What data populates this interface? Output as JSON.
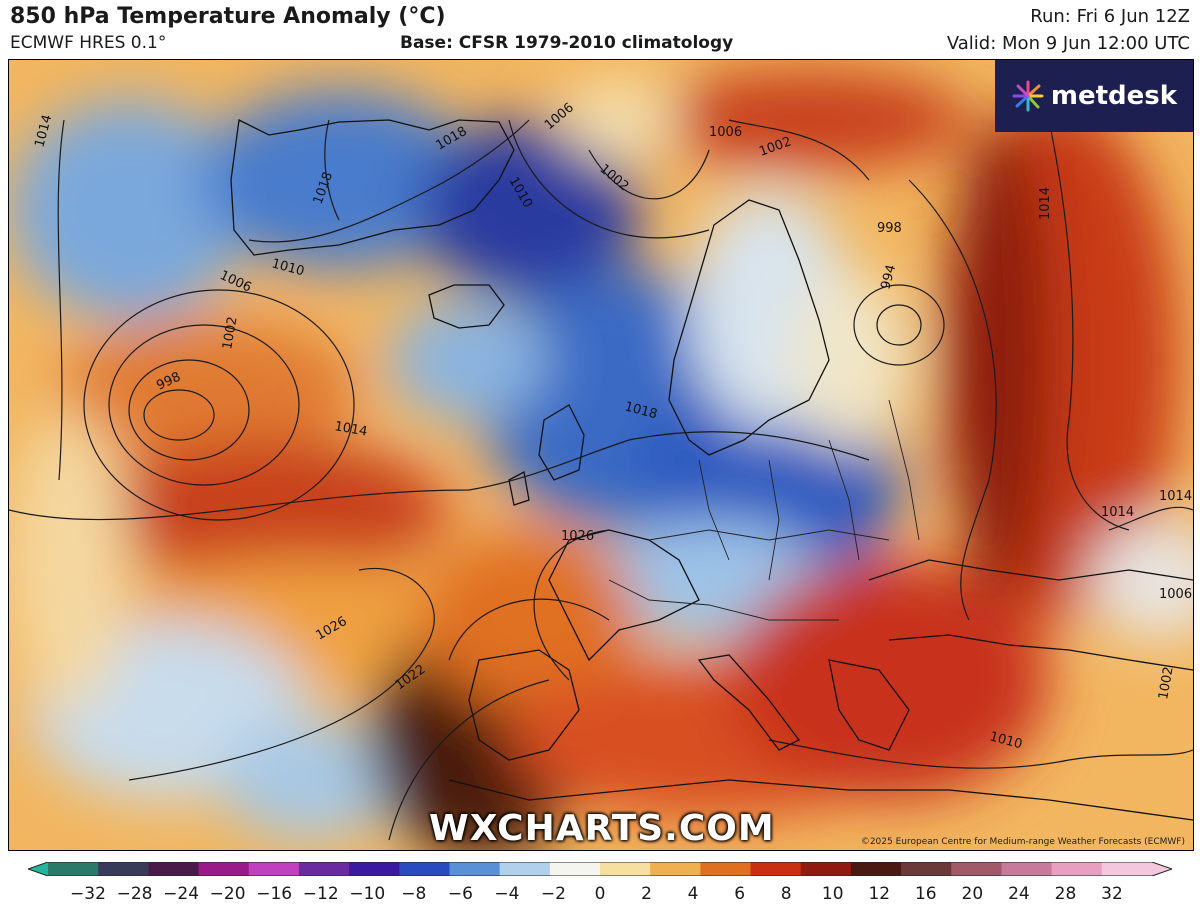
{
  "header": {
    "title": "850 hPa Temperature Anomaly (°C)",
    "model": "ECMWF HRES 0.1°",
    "base": "Base: CFSR 1979-2010 climatology",
    "run": "Run: Fri 6 Jun 12Z",
    "valid": "Valid: Mon 9 Jun 12:00 UTC"
  },
  "logo": {
    "text": "metdesk",
    "icon": "metdesk-burst-icon"
  },
  "watermark": "WXCHARTS.COM",
  "copyright": "©2025 European Centre for Medium-range Weather Forecasts (ECMWF)",
  "isobar_labels": [
    "1014",
    "1018",
    "1006",
    "1002",
    "1010",
    "1006",
    "1002",
    "998",
    "1014",
    "1018",
    "1026",
    "1026",
    "1022",
    "998",
    "994",
    "1014",
    "1014",
    "1006",
    "1002",
    "1010"
  ],
  "colorbar": {
    "ticks": [
      "−32",
      "−28",
      "−24",
      "−20",
      "−16",
      "−12",
      "−10",
      "−8",
      "−6",
      "−4",
      "−2",
      "0",
      "2",
      "4",
      "6",
      "8",
      "10",
      "12",
      "16",
      "20",
      "24",
      "28",
      "32"
    ],
    "colors": [
      "#1fb89a",
      "#2a7a6a",
      "#3a3a5a",
      "#4a1a4a",
      "#9a1a8a",
      "#c040c0",
      "#6a2aa0",
      "#3a1aa0",
      "#2a4ac0",
      "#5a90d8",
      "#b0d0ec",
      "#f5f5f0",
      "#f5e0a0",
      "#f0b050",
      "#e07020",
      "#c83010",
      "#901a10",
      "#4a1a12",
      "#6a3a3a",
      "#a05a6a",
      "#c87a9a",
      "#e8a0c0",
      "#f4c8dc"
    ]
  }
}
